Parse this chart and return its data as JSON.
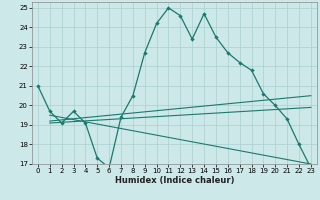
{
  "xlabel": "Humidex (Indice chaleur)",
  "background_color": "#cce8e8",
  "grid_color": "#aacfcf",
  "line_color": "#1a7a6e",
  "xlim": [
    -0.5,
    23.5
  ],
  "ylim": [
    17,
    25.3
  ],
  "yticks": [
    17,
    18,
    19,
    20,
    21,
    22,
    23,
    24,
    25
  ],
  "xticks": [
    0,
    1,
    2,
    3,
    4,
    5,
    6,
    7,
    8,
    9,
    10,
    11,
    12,
    13,
    14,
    15,
    16,
    17,
    18,
    19,
    20,
    21,
    22,
    23
  ],
  "series": [
    {
      "x": [
        0,
        1,
        2,
        3,
        4,
        5,
        6,
        7,
        8,
        9,
        10,
        11,
        12,
        13,
        14,
        15,
        16,
        17,
        18,
        19,
        20,
        21,
        22,
        23
      ],
      "y": [
        21.0,
        19.7,
        19.1,
        19.7,
        19.1,
        17.3,
        16.8,
        19.4,
        20.5,
        22.7,
        24.2,
        25.0,
        24.6,
        23.4,
        24.7,
        23.5,
        22.7,
        22.2,
        21.8,
        20.6,
        20.0,
        19.3,
        18.0,
        16.8
      ],
      "marker": true
    },
    {
      "x": [
        1,
        23
      ],
      "y": [
        19.2,
        20.5
      ],
      "marker": false
    },
    {
      "x": [
        1,
        23
      ],
      "y": [
        19.1,
        19.9
      ],
      "marker": false
    },
    {
      "x": [
        1,
        23
      ],
      "y": [
        19.5,
        17.0
      ],
      "marker": false
    }
  ]
}
